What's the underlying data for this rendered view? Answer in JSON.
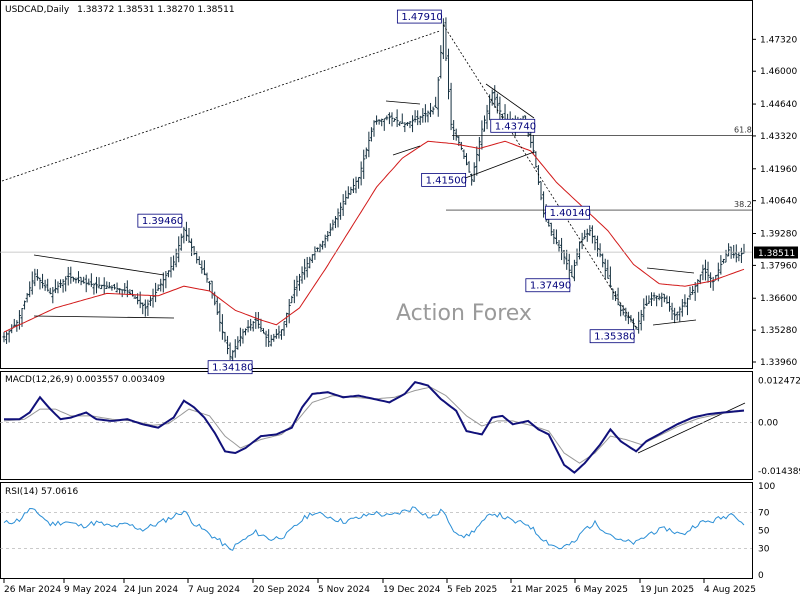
{
  "header": {
    "symbol": "USDCAD,Daily",
    "ohlc": "1.38372 1.38531 1.38270 1.38511"
  },
  "watermark": "Action Forex",
  "current_price": "1.38511",
  "chart_data": [
    {
      "type": "candlestick",
      "name": "price",
      "ylim": [
        1.3396,
        1.487
      ],
      "yticks": [
        "1.47320",
        "1.46000",
        "1.44640",
        "1.43320",
        "1.41960",
        "1.40640",
        "1.39280",
        "1.37960",
        "1.36600",
        "1.35280",
        "1.33960"
      ],
      "xticks": [
        "26 Mar 2024",
        "9 May 2024",
        "24 Jun 2024",
        "7 Aug 2024",
        "20 Sep 2024",
        "5 Nov 2024",
        "19 Dec 2024",
        "5 Feb 2025",
        "21 Mar 2025",
        "6 May 2025",
        "19 Jun 2025",
        "4 Aug 2025"
      ],
      "price_anchors": [
        [
          0,
          1.35
        ],
        [
          5,
          1.356
        ],
        [
          12,
          1.376
        ],
        [
          18,
          1.368
        ],
        [
          25,
          1.375
        ],
        [
          32,
          1.372
        ],
        [
          40,
          1.371
        ],
        [
          48,
          1.369
        ],
        [
          55,
          1.362
        ],
        [
          60,
          1.37
        ],
        [
          66,
          1.381
        ],
        [
          70,
          1.3946
        ],
        [
          75,
          1.382
        ],
        [
          80,
          1.372
        ],
        [
          85,
          1.352
        ],
        [
          88,
          1.3418
        ],
        [
          93,
          1.352
        ],
        [
          98,
          1.357
        ],
        [
          103,
          1.348
        ],
        [
          108,
          1.353
        ],
        [
          114,
          1.373
        ],
        [
          120,
          1.384
        ],
        [
          126,
          1.392
        ],
        [
          132,
          1.406
        ],
        [
          138,
          1.416
        ],
        [
          144,
          1.439
        ],
        [
          150,
          1.441
        ],
        [
          156,
          1.438
        ],
        [
          162,
          1.441
        ],
        [
          168,
          1.445
        ],
        [
          171,
          1.4791
        ],
        [
          174,
          1.438
        ],
        [
          178,
          1.428
        ],
        [
          182,
          1.415
        ],
        [
          186,
          1.436
        ],
        [
          190,
          1.451
        ],
        [
          194,
          1.441
        ],
        [
          198,
          1.4374
        ],
        [
          202,
          1.441
        ],
        [
          206,
          1.427
        ],
        [
          210,
          1.401
        ],
        [
          214,
          1.391
        ],
        [
          218,
          1.383
        ],
        [
          221,
          1.3749
        ],
        [
          224,
          1.389
        ],
        [
          228,
          1.394
        ],
        [
          232,
          1.384
        ],
        [
          236,
          1.371
        ],
        [
          240,
          1.361
        ],
        [
          244,
          1.357
        ],
        [
          246,
          1.3538
        ],
        [
          249,
          1.362
        ],
        [
          253,
          1.367
        ],
        [
          257,
          1.366
        ],
        [
          261,
          1.359
        ],
        [
          265,
          1.364
        ],
        [
          269,
          1.371
        ],
        [
          272,
          1.378
        ],
        [
          276,
          1.373
        ],
        [
          279,
          1.38
        ],
        [
          282,
          1.386
        ],
        [
          285,
          1.383
        ],
        [
          288,
          1.3851
        ]
      ],
      "ma_anchors": [
        [
          0,
          1.352
        ],
        [
          20,
          1.362
        ],
        [
          40,
          1.368
        ],
        [
          60,
          1.367
        ],
        [
          70,
          1.371
        ],
        [
          80,
          1.369
        ],
        [
          90,
          1.361
        ],
        [
          100,
          1.357
        ],
        [
          106,
          1.355
        ],
        [
          115,
          1.362
        ],
        [
          125,
          1.378
        ],
        [
          135,
          1.395
        ],
        [
          145,
          1.412
        ],
        [
          155,
          1.424
        ],
        [
          165,
          1.431
        ],
        [
          175,
          1.43
        ],
        [
          185,
          1.428
        ],
        [
          195,
          1.431
        ],
        [
          205,
          1.427
        ],
        [
          215,
          1.414
        ],
        [
          225,
          1.404
        ],
        [
          235,
          1.394
        ],
        [
          245,
          1.38
        ],
        [
          255,
          1.372
        ],
        [
          265,
          1.371
        ],
        [
          275,
          1.373
        ],
        [
          288,
          1.378
        ]
      ],
      "labels": [
        {
          "text": "1.47910",
          "price": 1.4791
        },
        {
          "text": "1.43740",
          "price": 1.4374
        },
        {
          "text": "1.41500",
          "price": 1.415
        },
        {
          "text": "1.40140",
          "price": 1.4014
        },
        {
          "text": "1.39460",
          "price": 1.3946
        },
        {
          "text": "1.37490",
          "price": 1.3749
        },
        {
          "text": "1.35380",
          "price": 1.3538
        },
        {
          "text": "1.34180",
          "price": 1.3418
        }
      ],
      "fib_levels": [
        {
          "text": "61.8",
          "price": 1.4333
        },
        {
          "text": "38.2",
          "price": 1.4025
        }
      ]
    },
    {
      "type": "line",
      "name": "MACD(12,26,9) 0.003557 0.003409",
      "ylim": [
        -0.0158,
        0.0138
      ],
      "yticks": [
        "0.012472",
        "0.00",
        "-0.014389"
      ],
      "macd_anchors": [
        [
          0,
          0.001
        ],
        [
          6,
          0.001
        ],
        [
          10,
          0.003
        ],
        [
          14,
          0.0075
        ],
        [
          18,
          0.004
        ],
        [
          22,
          0.001
        ],
        [
          26,
          0.0015
        ],
        [
          32,
          0.003
        ],
        [
          36,
          0.001
        ],
        [
          42,
          0.0005
        ],
        [
          48,
          0.001
        ],
        [
          54,
          -0.0005
        ],
        [
          60,
          -0.0015
        ],
        [
          66,
          0.0015
        ],
        [
          70,
          0.0065
        ],
        [
          74,
          0.0045
        ],
        [
          78,
          0.0015
        ],
        [
          82,
          -0.003
        ],
        [
          86,
          -0.0085
        ],
        [
          90,
          -0.009
        ],
        [
          94,
          -0.0075
        ],
        [
          100,
          -0.004
        ],
        [
          106,
          -0.0035
        ],
        [
          112,
          -0.0015
        ],
        [
          116,
          0.0045
        ],
        [
          120,
          0.0085
        ],
        [
          126,
          0.009
        ],
        [
          132,
          0.0075
        ],
        [
          138,
          0.008
        ],
        [
          144,
          0.007
        ],
        [
          150,
          0.006
        ],
        [
          156,
          0.0085
        ],
        [
          160,
          0.012
        ],
        [
          165,
          0.011
        ],
        [
          170,
          0.007
        ],
        [
          176,
          0.0035
        ],
        [
          180,
          -0.0025
        ],
        [
          186,
          -0.0035
        ],
        [
          190,
          0.0015
        ],
        [
          194,
          0.002
        ],
        [
          198,
          -0.0005
        ],
        [
          204,
          0.0005
        ],
        [
          208,
          -0.002
        ],
        [
          212,
          -0.0035
        ],
        [
          218,
          -0.0125
        ],
        [
          222,
          -0.0148
        ],
        [
          226,
          -0.012
        ],
        [
          232,
          -0.0065
        ],
        [
          236,
          -0.002
        ],
        [
          240,
          -0.0055
        ],
        [
          246,
          -0.0085
        ],
        [
          250,
          -0.0055
        ],
        [
          256,
          -0.003
        ],
        [
          262,
          -0.0005
        ],
        [
          268,
          0.0015
        ],
        [
          274,
          0.0025
        ],
        [
          280,
          0.003
        ],
        [
          288,
          0.0036
        ]
      ],
      "signal_anchors": [
        [
          0,
          0.0005
        ],
        [
          8,
          0.001
        ],
        [
          14,
          0.004
        ],
        [
          20,
          0.004
        ],
        [
          26,
          0.002
        ],
        [
          34,
          0.002
        ],
        [
          42,
          0.001
        ],
        [
          50,
          0.0005
        ],
        [
          58,
          -0.0008
        ],
        [
          64,
          -0.0003
        ],
        [
          72,
          0.004
        ],
        [
          80,
          0.002
        ],
        [
          86,
          -0.004
        ],
        [
          92,
          -0.0075
        ],
        [
          100,
          -0.005
        ],
        [
          108,
          -0.0035
        ],
        [
          114,
          0.0005
        ],
        [
          120,
          0.006
        ],
        [
          128,
          0.008
        ],
        [
          136,
          0.0075
        ],
        [
          144,
          0.007
        ],
        [
          152,
          0.0075
        ],
        [
          160,
          0.0095
        ],
        [
          166,
          0.0105
        ],
        [
          172,
          0.008
        ],
        [
          180,
          0.002
        ],
        [
          186,
          -0.001
        ],
        [
          192,
          0.0005
        ],
        [
          198,
          0.0005
        ],
        [
          206,
          -0.001
        ],
        [
          212,
          -0.0025
        ],
        [
          218,
          -0.009
        ],
        [
          224,
          -0.012
        ],
        [
          230,
          -0.009
        ],
        [
          236,
          -0.004
        ],
        [
          242,
          -0.005
        ],
        [
          248,
          -0.0065
        ],
        [
          256,
          -0.0035
        ],
        [
          262,
          -0.0012
        ],
        [
          270,
          0.0012
        ],
        [
          280,
          0.0028
        ],
        [
          288,
          0.0034
        ]
      ]
    },
    {
      "type": "line",
      "name": "RSI(14) 57.0616",
      "ylim": [
        0,
        100
      ],
      "yticks": [
        "100",
        "70",
        "50",
        "30",
        "0"
      ],
      "rsi_anchors": [
        [
          0,
          58
        ],
        [
          6,
          62
        ],
        [
          10,
          74
        ],
        [
          14,
          68
        ],
        [
          18,
          57
        ],
        [
          24,
          60
        ],
        [
          30,
          55
        ],
        [
          36,
          59
        ],
        [
          42,
          54
        ],
        [
          48,
          57
        ],
        [
          54,
          51
        ],
        [
          60,
          58
        ],
        [
          66,
          66
        ],
        [
          70,
          72
        ],
        [
          74,
          58
        ],
        [
          80,
          46
        ],
        [
          84,
          38
        ],
        [
          88,
          28
        ],
        [
          92,
          37
        ],
        [
          98,
          48
        ],
        [
          104,
          40
        ],
        [
          110,
          45
        ],
        [
          116,
          62
        ],
        [
          120,
          70
        ],
        [
          126,
          66
        ],
        [
          132,
          60
        ],
        [
          138,
          64
        ],
        [
          144,
          70
        ],
        [
          150,
          66
        ],
        [
          156,
          72
        ],
        [
          160,
          76
        ],
        [
          166,
          64
        ],
        [
          171,
          73
        ],
        [
          174,
          52
        ],
        [
          180,
          43
        ],
        [
          186,
          58
        ],
        [
          190,
          70
        ],
        [
          194,
          66
        ],
        [
          198,
          60
        ],
        [
          204,
          57
        ],
        [
          208,
          45
        ],
        [
          212,
          36
        ],
        [
          216,
          30
        ],
        [
          222,
          36
        ],
        [
          226,
          52
        ],
        [
          230,
          58
        ],
        [
          236,
          46
        ],
        [
          240,
          38
        ],
        [
          246,
          36
        ],
        [
          252,
          48
        ],
        [
          258,
          52
        ],
        [
          264,
          45
        ],
        [
          270,
          58
        ],
        [
          276,
          61
        ],
        [
          280,
          65
        ],
        [
          284,
          70
        ],
        [
          288,
          57
        ]
      ]
    }
  ]
}
